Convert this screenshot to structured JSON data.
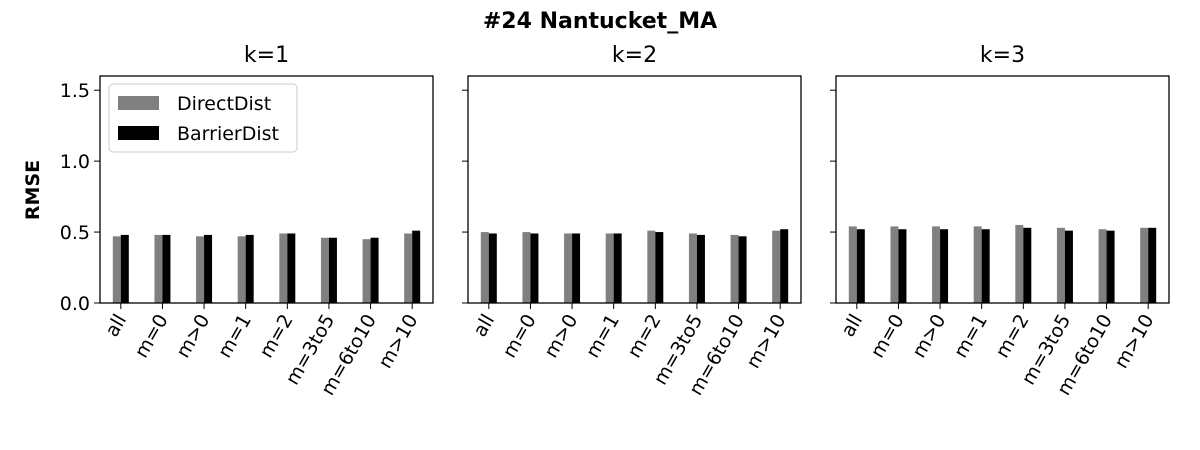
{
  "suptitle": "#24 Nantucket_MA",
  "ylabel": "RMSE",
  "yticks": [
    "0.0",
    "0.5",
    "1.0",
    "1.5"
  ],
  "legend": {
    "position": "upper-left",
    "entries": [
      "DirectDist",
      "BarrierDist"
    ]
  },
  "colors": {
    "DirectDist": "#808080",
    "BarrierDist": "#000000"
  },
  "chart_data": [
    {
      "type": "bar",
      "title": "k=1",
      "categories": [
        "all",
        "m=0",
        "m>0",
        "m=1",
        "m=2",
        "m=3to5",
        "m=6to10",
        "m>10"
      ],
      "series": [
        {
          "name": "DirectDist",
          "values": [
            0.47,
            0.48,
            0.47,
            0.47,
            0.49,
            0.46,
            0.45,
            0.49
          ]
        },
        {
          "name": "BarrierDist",
          "values": [
            0.48,
            0.48,
            0.48,
            0.48,
            0.49,
            0.46,
            0.46,
            0.51
          ]
        }
      ],
      "ylim": [
        0,
        1.6
      ],
      "ylabel": "RMSE",
      "legend": "upper-left"
    },
    {
      "type": "bar",
      "title": "k=2",
      "categories": [
        "all",
        "m=0",
        "m>0",
        "m=1",
        "m=2",
        "m=3to5",
        "m=6to10",
        "m>10"
      ],
      "series": [
        {
          "name": "DirectDist",
          "values": [
            0.5,
            0.5,
            0.49,
            0.49,
            0.51,
            0.49,
            0.48,
            0.51
          ]
        },
        {
          "name": "BarrierDist",
          "values": [
            0.49,
            0.49,
            0.49,
            0.49,
            0.5,
            0.48,
            0.47,
            0.52
          ]
        }
      ],
      "ylim": [
        0,
        1.6
      ]
    },
    {
      "type": "bar",
      "title": "k=3",
      "categories": [
        "all",
        "m=0",
        "m>0",
        "m=1",
        "m=2",
        "m=3to5",
        "m=6to10",
        "m>10"
      ],
      "series": [
        {
          "name": "DirectDist",
          "values": [
            0.54,
            0.54,
            0.54,
            0.54,
            0.55,
            0.53,
            0.52,
            0.53
          ]
        },
        {
          "name": "BarrierDist",
          "values": [
            0.52,
            0.52,
            0.52,
            0.52,
            0.53,
            0.51,
            0.51,
            0.53
          ]
        }
      ],
      "ylim": [
        0,
        1.6
      ]
    }
  ]
}
